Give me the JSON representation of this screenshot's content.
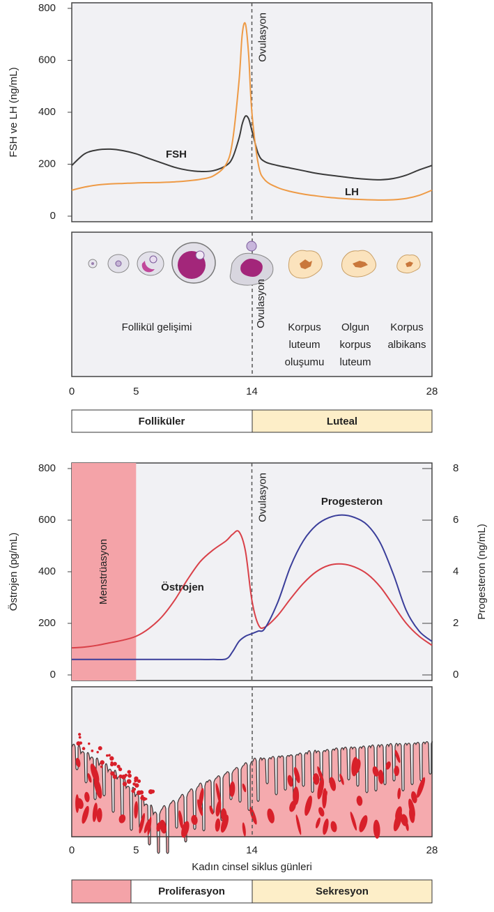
{
  "chart_data": [
    {
      "type": "line",
      "ylabel": "FSH ve LH (ng/mL)",
      "x": [
        0,
        1,
        2,
        3,
        4,
        5,
        6,
        7,
        8,
        9,
        10,
        11,
        12,
        12.5,
        13,
        13.25,
        13.5,
        13.75,
        14,
        14.5,
        15,
        16,
        17,
        18,
        19,
        20,
        21,
        22,
        23,
        24,
        25,
        26,
        27,
        28
      ],
      "series": [
        {
          "name": "FSH",
          "color": "#3a3a3a",
          "values": [
            195,
            240,
            255,
            258,
            252,
            240,
            222,
            205,
            188,
            177,
            172,
            175,
            195,
            225,
            300,
            355,
            385,
            375,
            330,
            240,
            210,
            195,
            185,
            175,
            165,
            158,
            152,
            146,
            142,
            140,
            145,
            158,
            178,
            195
          ]
        },
        {
          "name": "LH",
          "color": "#ee9a45",
          "values": [
            100,
            112,
            120,
            124,
            126,
            128,
            129,
            130,
            132,
            136,
            142,
            155,
            200,
            290,
            520,
            700,
            740,
            620,
            400,
            200,
            140,
            110,
            95,
            85,
            78,
            72,
            68,
            65,
            63,
            62,
            63,
            68,
            80,
            100
          ]
        }
      ],
      "xlim": [
        0,
        28
      ],
      "xticks": [
        0,
        5,
        14,
        28
      ],
      "ylim": [
        0,
        800
      ],
      "yticks": [
        0,
        200,
        400,
        600,
        800
      ],
      "annotations": [
        {
          "x": 14,
          "label": "Ovulasyon"
        }
      ]
    },
    {
      "type": "line",
      "ylabel": "Östrojen (pg/mL)",
      "y2label": "Progesteron (ng/mL)",
      "xlabel": "Kadın cinsel siklus günleri",
      "x": [
        0,
        1,
        2,
        3,
        4,
        5,
        6,
        7,
        8,
        9,
        10,
        11,
        12,
        12.5,
        13,
        13.5,
        14,
        14.5,
        15,
        16,
        17,
        18,
        19,
        20,
        21,
        22,
        23,
        24,
        25,
        26,
        27,
        28
      ],
      "series": [
        {
          "name": "Östrojen",
          "color": "#d94048",
          "values": [
            105,
            108,
            115,
            125,
            135,
            150,
            180,
            225,
            290,
            370,
            440,
            485,
            520,
            545,
            555,
            480,
            290,
            195,
            185,
            230,
            295,
            355,
            400,
            425,
            430,
            418,
            390,
            340,
            270,
            200,
            150,
            115
          ]
        },
        {
          "name": "Progesteron",
          "color": "#3a3e9a",
          "axis": "y2",
          "values": [
            0.6,
            0.6,
            0.6,
            0.6,
            0.6,
            0.6,
            0.6,
            0.6,
            0.6,
            0.6,
            0.6,
            0.6,
            0.62,
            0.9,
            1.3,
            1.5,
            1.6,
            1.7,
            1.8,
            2.8,
            4.2,
            5.2,
            5.8,
            6.1,
            6.2,
            6.1,
            5.8,
            5.1,
            3.9,
            2.5,
            1.7,
            1.3
          ]
        }
      ],
      "xlim": [
        0,
        28
      ],
      "xticks": [
        0,
        5,
        14,
        28
      ],
      "ylim": [
        0,
        800
      ],
      "yticks": [
        0,
        200,
        400,
        600,
        800
      ],
      "y2lim": [
        0,
        8
      ],
      "y2ticks": [
        0,
        2,
        4,
        6,
        8
      ],
      "bands": [
        {
          "from": 0,
          "to": 5,
          "label": "Menstrüasyon",
          "color": "#f4a3a8"
        }
      ],
      "annotations": [
        {
          "x": 14,
          "label": "Ovulasyon"
        }
      ]
    }
  ],
  "ovary_panel": {
    "ovulation_label": "Ovulasyon",
    "labels": [
      {
        "lines": [
          "Follikül gelişimi"
        ]
      },
      {
        "lines": [
          "Korpus",
          "luteum",
          "oluşumu"
        ]
      },
      {
        "lines": [
          "Olgun",
          "korpus",
          "luteum"
        ]
      },
      {
        "lines": [
          "Korpus",
          "albikans"
        ]
      }
    ]
  },
  "phase_bar_1": {
    "phases": [
      "Folliküler",
      "Luteal"
    ]
  },
  "phase_bar_2": {
    "phases": [
      "Proliferasyon",
      "Sekresyon"
    ]
  }
}
